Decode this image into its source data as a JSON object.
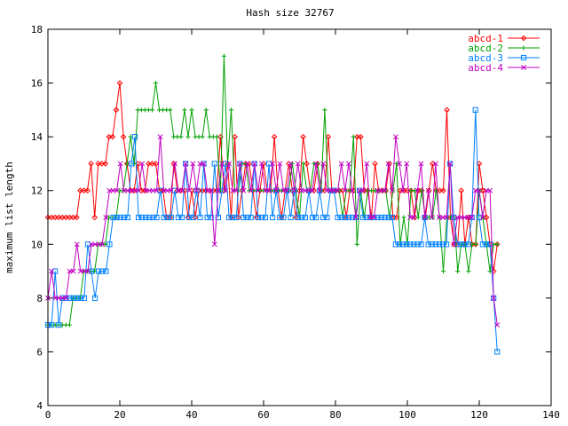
{
  "chart_data": {
    "type": "line",
    "title": "Hash size 32767",
    "xlabel": "",
    "ylabel": "maximum list length",
    "xlim": [
      0,
      140
    ],
    "ylim": [
      4,
      18
    ],
    "xticks": [
      0,
      20,
      40,
      60,
      80,
      100,
      120,
      140
    ],
    "yticks": [
      4,
      6,
      8,
      10,
      12,
      14,
      16,
      18
    ],
    "grid": false,
    "legend_position": "top-right",
    "x_start": 0,
    "x_end": 125,
    "series": [
      {
        "name": "abcd-1",
        "color": "#ff0000",
        "marker": "diamond",
        "values": [
          11,
          11,
          11,
          11,
          11,
          11,
          11,
          11,
          11,
          12,
          12,
          12,
          13,
          11,
          13,
          13,
          13,
          14,
          14,
          15,
          16,
          14,
          13,
          12,
          12,
          13,
          12,
          12,
          13,
          13,
          13,
          12,
          12,
          11,
          11,
          13,
          12,
          12,
          12,
          11,
          12,
          11,
          12,
          12,
          12,
          12,
          12,
          12,
          14,
          12,
          13,
          11,
          14,
          11,
          12,
          13,
          13,
          12,
          11,
          12,
          13,
          12,
          12,
          14,
          12,
          11,
          12,
          13,
          12,
          11,
          12,
          14,
          13,
          12,
          12,
          13,
          12,
          12,
          14,
          12,
          12,
          12,
          12,
          11,
          12,
          12,
          14,
          14,
          12,
          12,
          11,
          13,
          12,
          12,
          12,
          13,
          11,
          11,
          12,
          12,
          12,
          12,
          11,
          12,
          12,
          11,
          12,
          13,
          12,
          12,
          12,
          15,
          11,
          10,
          10,
          12,
          10,
          11,
          10,
          10,
          13,
          12,
          11,
          10,
          9,
          10
        ]
      },
      {
        "name": "abcd-2",
        "color": "#00a000",
        "marker": "plus",
        "values": [
          7,
          7,
          7,
          7,
          7,
          7,
          7,
          8,
          8,
          8,
          9,
          9,
          9,
          9,
          10,
          10,
          10,
          11,
          11,
          11,
          12,
          12,
          13,
          14,
          13,
          15,
          15,
          15,
          15,
          15,
          16,
          15,
          15,
          15,
          15,
          14,
          14,
          14,
          15,
          14,
          15,
          14,
          14,
          14,
          15,
          14,
          14,
          14,
          12,
          17,
          13,
          15,
          12,
          12,
          13,
          13,
          12,
          12,
          12,
          12,
          12,
          12,
          12,
          12,
          12,
          12,
          12,
          12,
          13,
          12,
          11,
          13,
          12,
          12,
          13,
          13,
          12,
          15,
          12,
          12,
          12,
          12,
          11,
          12,
          12,
          14,
          10,
          12,
          11,
          12,
          12,
          12,
          12,
          12,
          12,
          11,
          12,
          13,
          10,
          11,
          10,
          12,
          12,
          11,
          12,
          11,
          11,
          11,
          12,
          11,
          9,
          11,
          11,
          11,
          9,
          10,
          10,
          9,
          10,
          10,
          12,
          11,
          10,
          9,
          10,
          10
        ]
      },
      {
        "name": "abcd-3",
        "color": "#0080ff",
        "marker": "square",
        "values": [
          7,
          7,
          9,
          7,
          8,
          8,
          8,
          8,
          8,
          8,
          8,
          10,
          9,
          8,
          9,
          9,
          9,
          10,
          11,
          11,
          11,
          11,
          11,
          13,
          14,
          11,
          11,
          11,
          11,
          11,
          11,
          12,
          11,
          11,
          11,
          12,
          11,
          11,
          13,
          11,
          11,
          12,
          11,
          13,
          11,
          11,
          13,
          11,
          12,
          13,
          11,
          11,
          11,
          13,
          11,
          11,
          11,
          13,
          11,
          11,
          11,
          13,
          11,
          12,
          11,
          11,
          12,
          11,
          12,
          11,
          11,
          11,
          12,
          11,
          11,
          12,
          11,
          11,
          12,
          12,
          11,
          11,
          11,
          11,
          11,
          11,
          12,
          11,
          11,
          11,
          11,
          11,
          11,
          11,
          11,
          11,
          10,
          10,
          10,
          10,
          10,
          10,
          10,
          10,
          11,
          10,
          10,
          10,
          10,
          10,
          10,
          13,
          11,
          10,
          10,
          10,
          10,
          11,
          15,
          11,
          10,
          10,
          10,
          8,
          6
        ]
      },
      {
        "name": "abcd-4",
        "color": "#c000c0",
        "marker": "cross",
        "values": [
          8,
          9,
          8,
          8,
          8,
          8,
          9,
          9,
          10,
          9,
          9,
          9,
          10,
          10,
          10,
          10,
          11,
          12,
          12,
          12,
          13,
          12,
          12,
          12,
          12,
          12,
          13,
          12,
          12,
          12,
          12,
          14,
          12,
          12,
          12,
          13,
          12,
          12,
          13,
          12,
          13,
          12,
          13,
          13,
          12,
          12,
          10,
          12,
          13,
          12,
          13,
          12,
          12,
          13,
          12,
          13,
          12,
          13,
          12,
          13,
          12,
          12,
          13,
          12,
          13,
          12,
          12,
          13,
          12,
          13,
          12,
          12,
          12,
          12,
          13,
          12,
          13,
          12,
          12,
          12,
          12,
          13,
          12,
          13,
          12,
          11,
          12,
          12,
          13,
          11,
          11,
          12,
          12,
          12,
          13,
          12,
          14,
          13,
          12,
          13,
          11,
          11,
          12,
          13,
          11,
          12,
          11,
          13,
          11,
          11,
          11,
          13,
          10,
          11,
          11,
          11,
          11,
          11,
          12,
          12,
          11,
          12,
          12,
          8,
          7
        ]
      }
    ]
  }
}
